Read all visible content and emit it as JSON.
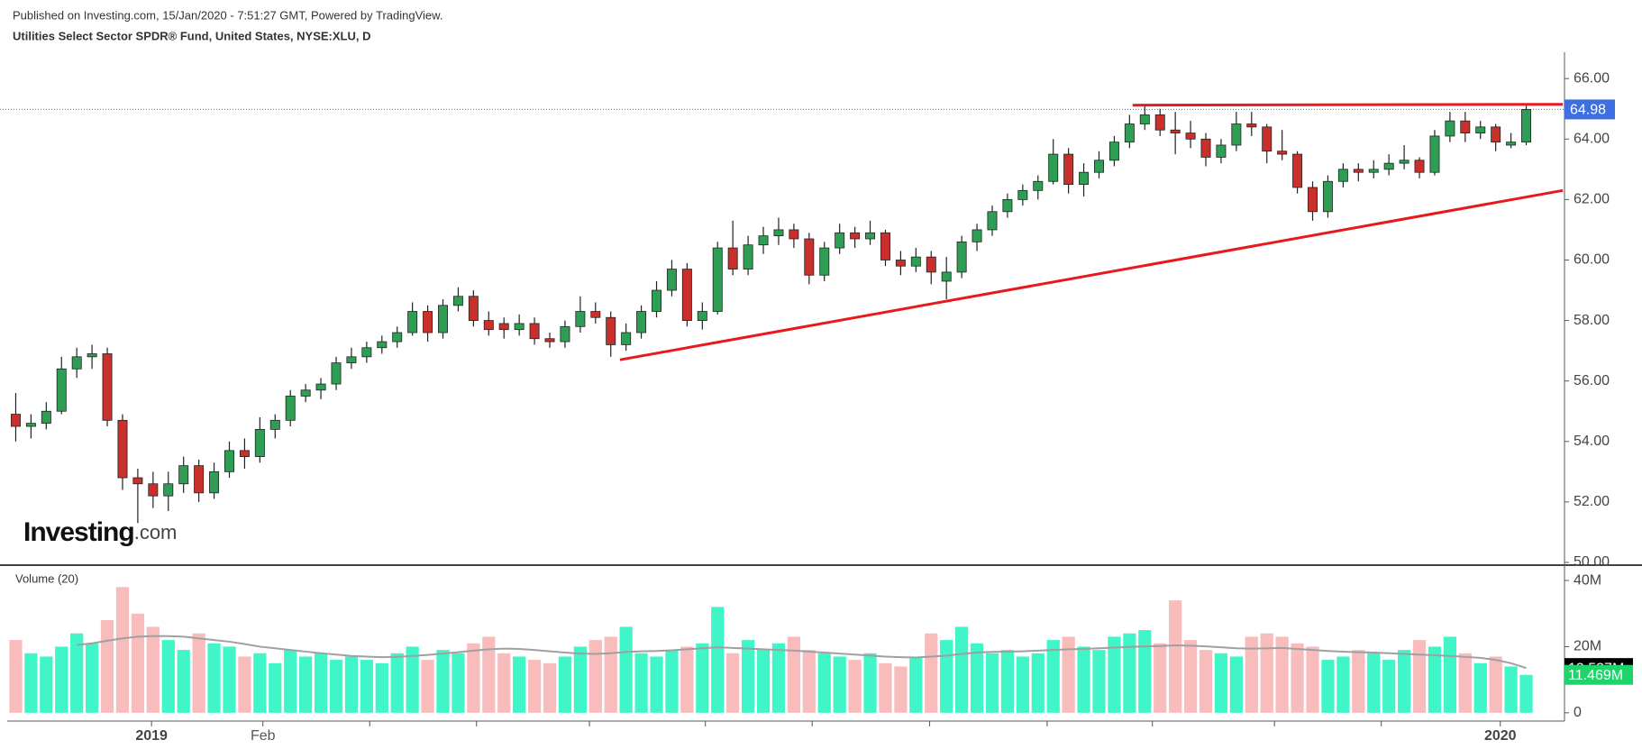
{
  "chart_data": {
    "type": "candlestick",
    "published": "Published on Investing.com, 15/Jan/2020 - 7:51:27 GMT, Powered by TradingView.",
    "title": "Utilities Select Sector SPDR® Fund, United States, NYSE:XLU, D",
    "logo": [
      "Investing",
      ".com"
    ],
    "up_color": "#2e9e55",
    "down_color": "#c9302c",
    "volume_up_color": "#40f5c8",
    "volume_down_color": "#f8bcbc",
    "ma_color": "#a0a0a0",
    "trendline_color": "#e8191c",
    "last_price_color": "#3d6fe0",
    "xlim": [
      -0.5,
      99.5
    ],
    "xticks": [
      {
        "value": 8.9,
        "label": "2019"
      },
      {
        "value": 16.2,
        "label": "Feb"
      },
      23.2,
      30.2,
      37.6,
      45.2,
      52.2,
      59.9,
      67.6,
      74.5,
      82.5,
      89.5,
      {
        "value": 97.3,
        "label": "2020"
      }
    ],
    "ylim": [
      49.97,
      66.87
    ],
    "yticks": [
      {
        "value": 50,
        "label": "50.00"
      },
      {
        "value": 52,
        "label": "52.00"
      },
      {
        "value": 54,
        "label": "54.00"
      },
      {
        "value": 56,
        "label": "56.00"
      },
      {
        "value": 58,
        "label": "58.00"
      },
      {
        "value": 60,
        "label": "60.00"
      },
      {
        "value": 62,
        "label": "62.00"
      },
      {
        "value": 64,
        "label": "64.00"
      },
      {
        "value": 66,
        "label": "66.00"
      }
    ],
    "candles": [
      [
        54.9,
        55.6,
        54.0,
        54.5
      ],
      [
        54.5,
        54.9,
        54.1,
        54.6
      ],
      [
        54.6,
        55.3,
        54.4,
        55
      ],
      [
        55,
        56.8,
        54.9,
        56.4
      ],
      [
        56.4,
        57.1,
        56.1,
        56.8
      ],
      [
        56.8,
        57.2,
        56.4,
        56.9
      ],
      [
        56.9,
        57.1,
        54.5,
        54.7
      ],
      [
        54.7,
        54.9,
        52.4,
        52.8
      ],
      [
        52.8,
        53.1,
        51.3,
        52.6
      ],
      [
        52.6,
        53,
        51.8,
        52.2
      ],
      [
        52.2,
        53,
        51.7,
        52.6
      ],
      [
        52.6,
        53.5,
        52.3,
        53.2
      ],
      [
        53.2,
        53.4,
        52,
        52.3
      ],
      [
        52.3,
        53.3,
        52.1,
        53
      ],
      [
        53,
        54,
        52.8,
        53.7
      ],
      [
        53.7,
        54.1,
        53.1,
        53.5
      ],
      [
        53.5,
        54.8,
        53.3,
        54.4
      ],
      [
        54.4,
        54.9,
        54.1,
        54.7
      ],
      [
        54.7,
        55.7,
        54.5,
        55.5
      ],
      [
        55.5,
        55.9,
        55.3,
        55.7
      ],
      [
        55.7,
        56.1,
        55.4,
        55.9
      ],
      [
        55.9,
        56.8,
        55.7,
        56.6
      ],
      [
        56.6,
        57.1,
        56.4,
        56.8
      ],
      [
        56.8,
        57.3,
        56.6,
        57.1
      ],
      [
        57.1,
        57.5,
        56.9,
        57.3
      ],
      [
        57.3,
        57.8,
        57.1,
        57.6
      ],
      [
        57.6,
        58.6,
        57.5,
        58.3
      ],
      [
        58.3,
        58.5,
        57.3,
        57.6
      ],
      [
        57.6,
        58.7,
        57.4,
        58.5
      ],
      [
        58.5,
        59.1,
        58.3,
        58.8
      ],
      [
        58.8,
        59,
        57.8,
        58
      ],
      [
        58,
        58.3,
        57.5,
        57.7
      ],
      [
        57.9,
        58.1,
        57.4,
        57.7
      ],
      [
        57.7,
        58.2,
        57.5,
        57.9
      ],
      [
        57.9,
        58.1,
        57.2,
        57.4
      ],
      [
        57.4,
        57.6,
        57.1,
        57.3
      ],
      [
        57.3,
        58,
        57.1,
        57.8
      ],
      [
        57.8,
        58.8,
        57.6,
        58.3
      ],
      [
        58.3,
        58.6,
        57.9,
        58.1
      ],
      [
        58.1,
        58.3,
        56.8,
        57.2
      ],
      [
        57.2,
        57.9,
        57,
        57.6
      ],
      [
        57.6,
        58.5,
        57.4,
        58.3
      ],
      [
        58.3,
        59.3,
        58.1,
        59
      ],
      [
        59,
        60,
        58.8,
        59.7
      ],
      [
        59.7,
        59.9,
        57.8,
        58
      ],
      [
        58,
        58.6,
        57.7,
        58.3
      ],
      [
        58.3,
        60.6,
        58.2,
        60.4
      ],
      [
        60.4,
        61.3,
        59.5,
        59.7
      ],
      [
        59.7,
        60.8,
        59.5,
        60.5
      ],
      [
        60.5,
        61.1,
        60.2,
        60.8
      ],
      [
        60.8,
        61.4,
        60.5,
        61
      ],
      [
        61,
        61.2,
        60.4,
        60.7
      ],
      [
        60.7,
        60.9,
        59.2,
        59.5
      ],
      [
        59.5,
        60.6,
        59.3,
        60.4
      ],
      [
        60.4,
        61.2,
        60.2,
        60.9
      ],
      [
        60.9,
        61.1,
        60.4,
        60.7
      ],
      [
        60.7,
        61.3,
        60.5,
        60.9
      ],
      [
        60.9,
        61,
        59.8,
        60
      ],
      [
        60,
        60.3,
        59.5,
        59.8
      ],
      [
        59.8,
        60.4,
        59.6,
        60.1
      ],
      [
        60.1,
        60.3,
        59.2,
        59.6
      ],
      [
        59.3,
        60.1,
        58.7,
        59.6
      ],
      [
        59.6,
        60.8,
        59.4,
        60.6
      ],
      [
        60.6,
        61.2,
        60.3,
        61
      ],
      [
        61,
        61.8,
        60.8,
        61.6
      ],
      [
        61.6,
        62.2,
        61.4,
        62
      ],
      [
        62,
        62.5,
        61.8,
        62.3
      ],
      [
        62.3,
        62.8,
        62,
        62.6
      ],
      [
        62.6,
        64,
        62.5,
        63.5
      ],
      [
        63.5,
        63.7,
        62.2,
        62.5
      ],
      [
        62.5,
        63.2,
        62.1,
        62.9
      ],
      [
        62.9,
        63.6,
        62.7,
        63.3
      ],
      [
        63.3,
        64.1,
        63.1,
        63.9
      ],
      [
        63.9,
        64.8,
        63.7,
        64.5
      ],
      [
        64.5,
        65.1,
        64.3,
        64.8
      ],
      [
        64.8,
        65,
        64.1,
        64.3
      ],
      [
        64.3,
        64.9,
        63.5,
        64.2
      ],
      [
        64.2,
        64.6,
        63.7,
        64
      ],
      [
        64,
        64.2,
        63.1,
        63.4
      ],
      [
        63.4,
        64,
        63.2,
        63.8
      ],
      [
        63.8,
        64.9,
        63.6,
        64.5
      ],
      [
        64.5,
        64.9,
        64.1,
        64.4
      ],
      [
        64.4,
        64.5,
        63.2,
        63.6
      ],
      [
        63.6,
        64.3,
        63.3,
        63.5
      ],
      [
        63.5,
        63.6,
        62.2,
        62.4
      ],
      [
        62.4,
        62.6,
        61.3,
        61.6
      ],
      [
        61.6,
        62.8,
        61.4,
        62.6
      ],
      [
        62.6,
        63.2,
        62.4,
        63
      ],
      [
        63,
        63.2,
        62.6,
        62.9
      ],
      [
        62.9,
        63.3,
        62.7,
        63
      ],
      [
        63,
        63.5,
        62.8,
        63.2
      ],
      [
        63.2,
        63.8,
        63,
        63.3
      ],
      [
        63.3,
        63.4,
        62.7,
        62.9
      ],
      [
        62.9,
        64.3,
        62.8,
        64.1
      ],
      [
        64.1,
        64.9,
        63.9,
        64.6
      ],
      [
        64.6,
        64.9,
        63.9,
        64.2
      ],
      [
        64.2,
        64.6,
        64,
        64.4
      ],
      [
        64.4,
        64.5,
        63.6,
        63.9
      ],
      [
        63.8,
        64.2,
        63.7,
        63.9
      ],
      [
        63.9,
        65.1,
        63.8,
        64.98
      ]
    ],
    "trendlines": [
      {
        "x": [
          39.6,
          101.4
        ],
        "y": [
          56.7,
          62.3
        ]
      },
      {
        "x": [
          73.2,
          101.4
        ],
        "y": [
          65.12,
          65.15
        ]
      }
    ],
    "volume": {
      "name": "Volume (20)",
      "ylim": [
        -2.5,
        44.1
      ],
      "yticks": [
        {
          "value": 0,
          "label": "0"
        },
        {
          "value": 20,
          "label": "20M"
        },
        {
          "value": 40,
          "label": "40M"
        }
      ],
      "values": [
        22,
        18,
        17,
        20,
        24,
        21,
        28,
        38,
        30,
        26,
        22,
        19,
        24,
        21,
        20,
        17,
        18,
        15,
        19,
        17,
        18,
        16,
        17,
        16,
        15,
        18,
        20,
        16,
        19,
        18,
        21,
        23,
        18,
        17,
        16,
        15,
        17,
        20,
        22,
        23,
        26,
        18,
        17,
        19,
        20,
        21,
        32,
        18,
        22,
        19,
        21,
        23,
        19,
        18,
        17,
        16,
        18,
        15,
        14,
        17,
        24,
        22,
        26,
        21,
        18,
        19,
        17,
        18,
        22,
        23,
        20,
        19,
        23,
        24,
        25,
        21,
        34,
        22,
        19,
        18,
        17,
        23,
        24,
        23,
        21,
        20,
        16,
        17,
        19,
        18,
        16,
        19,
        22,
        20,
        23,
        18,
        15,
        17,
        14,
        11.469
      ],
      "last_label": "11.469M",
      "ma": [
        null,
        null,
        null,
        null,
        20.5,
        21,
        21.8,
        22.5,
        23,
        23.2,
        23.2,
        23,
        22.5,
        22,
        21.5,
        20.8,
        20,
        19.5,
        19,
        18.5,
        18,
        17.6,
        17.2,
        17,
        16.8,
        16.9,
        17.2,
        17.5,
        17.9,
        18.3,
        18.8,
        19.2,
        19.4,
        19.3,
        19,
        18.6,
        18.2,
        17.9,
        17.8,
        18,
        18.4,
        18.6,
        18.7,
        18.9,
        19.2,
        19.5,
        19.8,
        19.6,
        19.4,
        19.2,
        19,
        18.8,
        18.5,
        18.2,
        17.9,
        17.6,
        17.3,
        17,
        16.8,
        16.7,
        17,
        17.3,
        17.8,
        18.2,
        18.4,
        18.5,
        18.6,
        18.8,
        19,
        19.2,
        19.3,
        19.5,
        19.7,
        19.9,
        20.1,
        20.2,
        20.4,
        20.3,
        20.1,
        19.8,
        19.5,
        19.4,
        19.5,
        19.6,
        19.3,
        19,
        18.7,
        18.5,
        18.3,
        18.2,
        18,
        17.8,
        17.6,
        17.4,
        17.2,
        16.9,
        16.6,
        16,
        15,
        13.537
      ],
      "ma_last_label": "13.537M"
    }
  }
}
